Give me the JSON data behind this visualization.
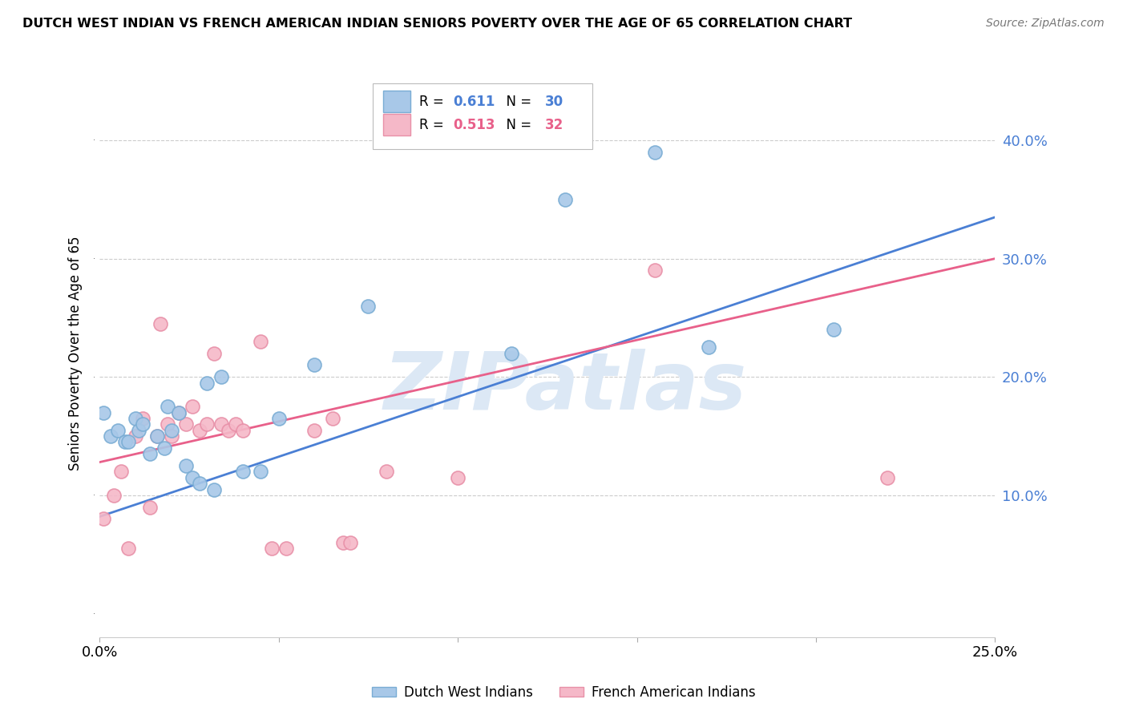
{
  "title": "DUTCH WEST INDIAN VS FRENCH AMERICAN INDIAN SENIORS POVERTY OVER THE AGE OF 65 CORRELATION CHART",
  "source": "Source: ZipAtlas.com",
  "ylabel": "Seniors Poverty Over the Age of 65",
  "xlim": [
    0.0,
    0.25
  ],
  "ylim": [
    -0.02,
    0.46
  ],
  "xtick_positions": [
    0.0,
    0.05,
    0.1,
    0.15,
    0.2,
    0.25
  ],
  "xtick_labels": [
    "0.0%",
    "",
    "",
    "",
    "",
    "25.0%"
  ],
  "ytick_positions": [
    0.1,
    0.2,
    0.3,
    0.4
  ],
  "ytick_labels": [
    "10.0%",
    "20.0%",
    "30.0%",
    "40.0%"
  ],
  "blue_R": 0.611,
  "blue_N": 30,
  "pink_R": 0.513,
  "pink_N": 32,
  "blue_color": "#a8c8e8",
  "pink_color": "#f5b8c8",
  "blue_edge_color": "#7aadd4",
  "pink_edge_color": "#e890a8",
  "blue_line_color": "#4a7fd4",
  "pink_line_color": "#e8608a",
  "watermark": "ZIPatlas",
  "watermark_color": "#dce8f5",
  "legend_label_blue": "Dutch West Indians",
  "legend_label_pink": "French American Indians",
  "blue_scatter_x": [
    0.001,
    0.003,
    0.005,
    0.007,
    0.008,
    0.01,
    0.011,
    0.012,
    0.014,
    0.016,
    0.018,
    0.019,
    0.02,
    0.022,
    0.024,
    0.026,
    0.028,
    0.03,
    0.032,
    0.034,
    0.04,
    0.045,
    0.05,
    0.06,
    0.075,
    0.115,
    0.13,
    0.155,
    0.17,
    0.205
  ],
  "blue_scatter_y": [
    0.17,
    0.15,
    0.155,
    0.145,
    0.145,
    0.165,
    0.155,
    0.16,
    0.135,
    0.15,
    0.14,
    0.175,
    0.155,
    0.17,
    0.125,
    0.115,
    0.11,
    0.195,
    0.105,
    0.2,
    0.12,
    0.12,
    0.165,
    0.21,
    0.26,
    0.22,
    0.35,
    0.39,
    0.225,
    0.24
  ],
  "pink_scatter_x": [
    0.001,
    0.004,
    0.006,
    0.008,
    0.01,
    0.012,
    0.014,
    0.016,
    0.017,
    0.019,
    0.02,
    0.022,
    0.024,
    0.026,
    0.028,
    0.03,
    0.032,
    0.034,
    0.036,
    0.038,
    0.04,
    0.045,
    0.048,
    0.052,
    0.06,
    0.065,
    0.068,
    0.07,
    0.08,
    0.1,
    0.155,
    0.22
  ],
  "pink_scatter_y": [
    0.08,
    0.1,
    0.12,
    0.055,
    0.15,
    0.165,
    0.09,
    0.15,
    0.245,
    0.16,
    0.15,
    0.17,
    0.16,
    0.175,
    0.155,
    0.16,
    0.22,
    0.16,
    0.155,
    0.16,
    0.155,
    0.23,
    0.055,
    0.055,
    0.155,
    0.165,
    0.06,
    0.06,
    0.12,
    0.115,
    0.29,
    0.115
  ],
  "blue_line_x0": 0.0,
  "blue_line_y0": 0.082,
  "blue_line_x1": 0.25,
  "blue_line_y1": 0.335,
  "pink_line_x0": 0.0,
  "pink_line_y0": 0.128,
  "pink_line_x1": 0.25,
  "pink_line_y1": 0.3
}
